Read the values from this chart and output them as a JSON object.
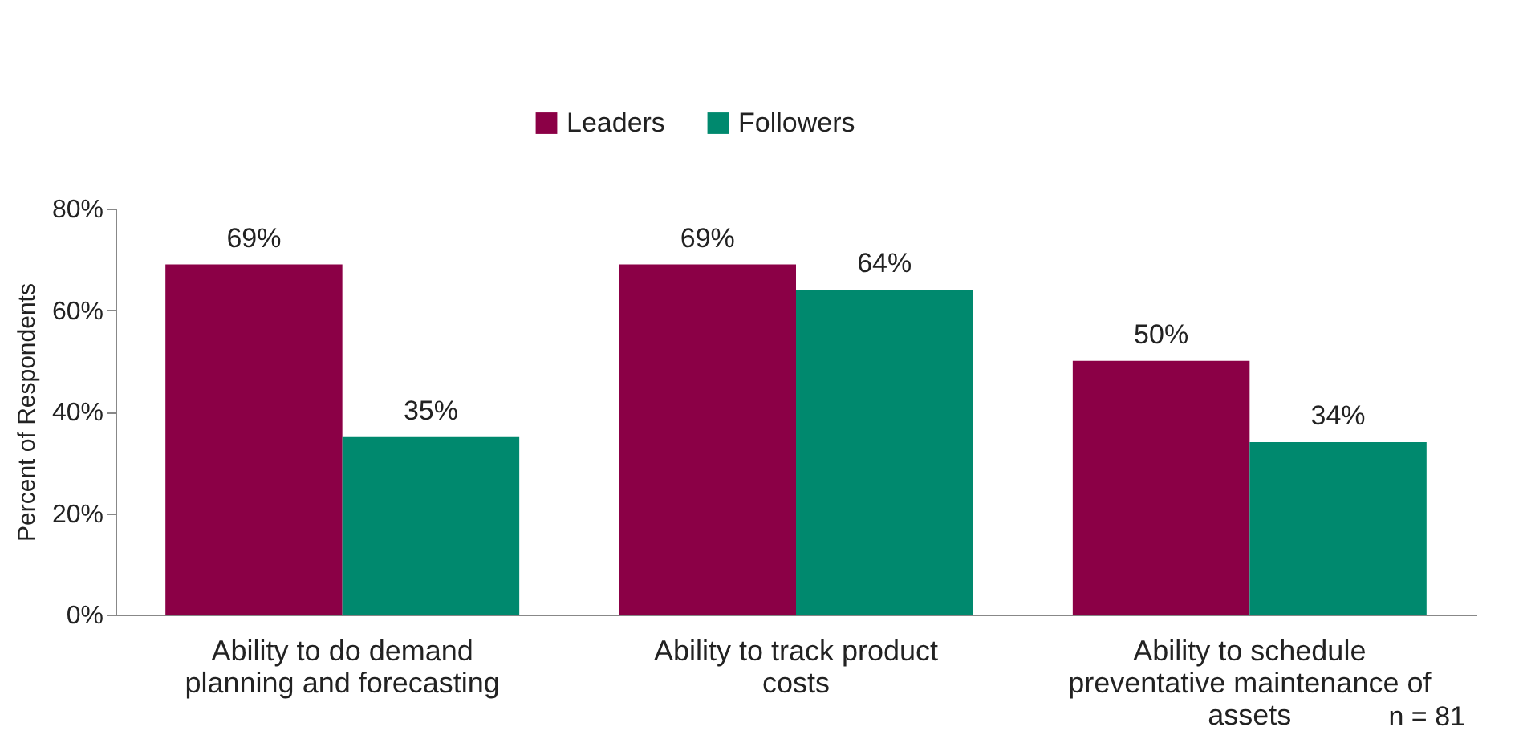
{
  "chart_data": {
    "type": "bar",
    "ylabel": "Percent of Respondents",
    "categories": [
      "Ability to do demand planning and forecasting",
      "Ability to track product costs",
      "Ability to schedule preventative maintenance of assets"
    ],
    "series": [
      {
        "name": "Leaders",
        "color": "#8b0046",
        "values": [
          69,
          69,
          50
        ],
        "value_labels": [
          "69%",
          "69%",
          "50%"
        ]
      },
      {
        "name": "Followers",
        "color": "#00896e",
        "values": [
          35,
          64,
          34
        ],
        "value_labels": [
          "35%",
          "64%",
          "34%"
        ]
      }
    ],
    "ylim": [
      0,
      80
    ],
    "yticks": [
      {
        "value": 0,
        "label": "0%"
      },
      {
        "value": 20,
        "label": "20%"
      },
      {
        "value": 40,
        "label": "40%"
      },
      {
        "value": 60,
        "label": "60%"
      },
      {
        "value": 80,
        "label": "80%"
      }
    ],
    "grid": false,
    "legend": "top",
    "annotations": [
      "n = 81"
    ]
  }
}
